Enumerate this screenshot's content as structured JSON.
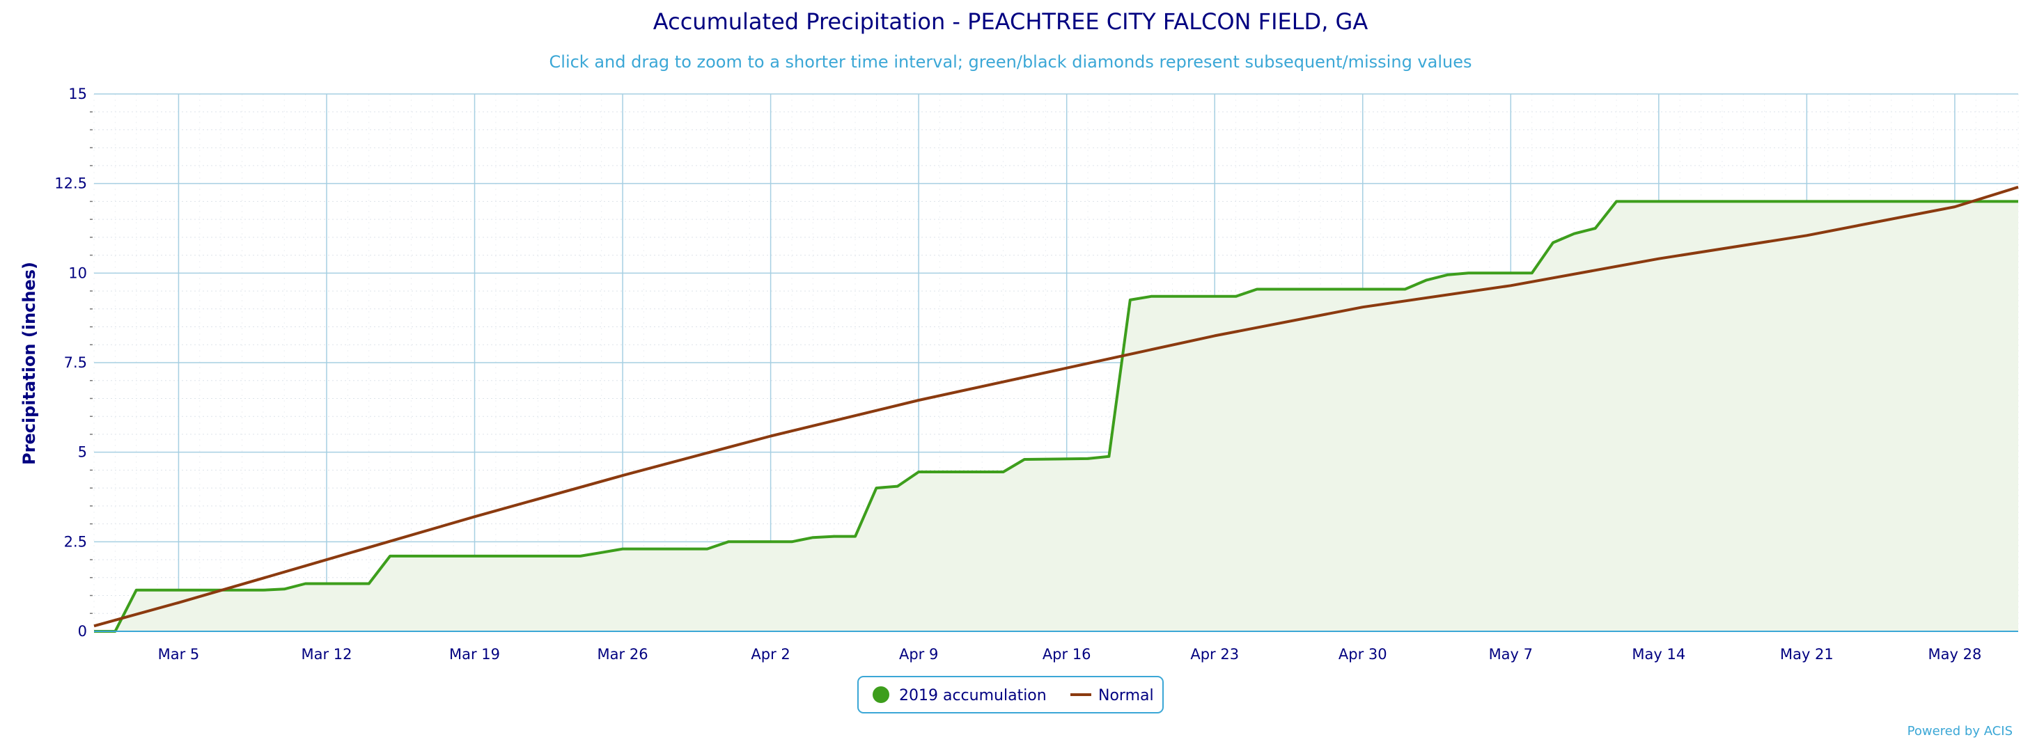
{
  "chart_data": {
    "type": "area",
    "title": "Accumulated Precipitation - PEACHTREE CITY FALCON FIELD, GA",
    "subtitle": "Click and drag to zoom to a shorter time interval; green/black diamonds represent subsequent/missing values",
    "xlabel": "",
    "ylabel": "Precipitation (inches)",
    "ylim": [
      0,
      15
    ],
    "y_ticks": [
      "0",
      "2.5",
      "5",
      "7.5",
      "10",
      "12.5",
      "15"
    ],
    "x_ticks": [
      "Mar 5",
      "Mar 12",
      "Mar 19",
      "Mar 26",
      "Apr 2",
      "Apr 9",
      "Apr 16",
      "Apr 23",
      "Apr 30",
      "May 7",
      "May 14",
      "May 21",
      "May 28"
    ],
    "x_range": [
      "2019-03-01",
      "2019-05-31"
    ],
    "grid": true,
    "legend_position": "bottom-center",
    "credit": "Powered by ACIS",
    "series": [
      {
        "name": "2019 accumulation",
        "color": "#3d9e1c",
        "fill": "#eef5e9",
        "points": [
          [
            "2019-03-01",
            0
          ],
          [
            "2019-03-02",
            0
          ],
          [
            "2019-03-03",
            1.15
          ],
          [
            "2019-03-09",
            1.15
          ],
          [
            "2019-03-10",
            1.18
          ],
          [
            "2019-03-11",
            1.33
          ],
          [
            "2019-03-14",
            1.33
          ],
          [
            "2019-03-15",
            2.1
          ],
          [
            "2019-03-24",
            2.1
          ],
          [
            "2019-03-25",
            2.2
          ],
          [
            "2019-03-26",
            2.3
          ],
          [
            "2019-03-30",
            2.3
          ],
          [
            "2019-03-31",
            2.5
          ],
          [
            "2019-04-03",
            2.5
          ],
          [
            "2019-04-04",
            2.62
          ],
          [
            "2019-04-05",
            2.65
          ],
          [
            "2019-04-06",
            2.65
          ],
          [
            "2019-04-07",
            4.0
          ],
          [
            "2019-04-08",
            4.05
          ],
          [
            "2019-04-09",
            4.45
          ],
          [
            "2019-04-13",
            4.45
          ],
          [
            "2019-04-14",
            4.8
          ],
          [
            "2019-04-17",
            4.82
          ],
          [
            "2019-04-18",
            4.88
          ],
          [
            "2019-04-19",
            9.25
          ],
          [
            "2019-04-20",
            9.35
          ],
          [
            "2019-04-24",
            9.35
          ],
          [
            "2019-04-25",
            9.55
          ],
          [
            "2019-05-02",
            9.55
          ],
          [
            "2019-05-03",
            9.8
          ],
          [
            "2019-05-04",
            9.95
          ],
          [
            "2019-05-05",
            10.0
          ],
          [
            "2019-05-08",
            10.0
          ],
          [
            "2019-05-09",
            10.85
          ],
          [
            "2019-05-10",
            11.1
          ],
          [
            "2019-05-11",
            11.25
          ],
          [
            "2019-05-12",
            12.0
          ],
          [
            "2019-05-31",
            12.0
          ]
        ]
      },
      {
        "name": "Normal",
        "color": "#8b3a0f",
        "points": [
          [
            "2019-03-01",
            0.15
          ],
          [
            "2019-03-05",
            0.8
          ],
          [
            "2019-03-12",
            2.0
          ],
          [
            "2019-03-19",
            3.2
          ],
          [
            "2019-03-26",
            4.35
          ],
          [
            "2019-04-02",
            5.45
          ],
          [
            "2019-04-09",
            6.45
          ],
          [
            "2019-04-16",
            7.35
          ],
          [
            "2019-04-23",
            8.25
          ],
          [
            "2019-04-30",
            9.05
          ],
          [
            "2019-05-07",
            9.65
          ],
          [
            "2019-05-14",
            10.4
          ],
          [
            "2019-05-21",
            11.05
          ],
          [
            "2019-05-28",
            11.85
          ],
          [
            "2019-05-31",
            12.4
          ]
        ]
      }
    ]
  }
}
